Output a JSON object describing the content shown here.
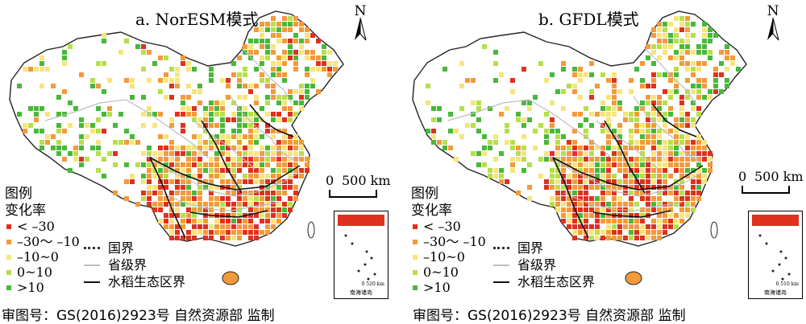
{
  "panels": [
    {
      "title": "a. NorESM模式",
      "north": "N",
      "scale": {
        "zero": "0",
        "label": "500 km"
      },
      "legend_title": "图例",
      "legend_sub": "变化率",
      "inset_scale": "0   520 km",
      "inset_label": "南海诸岛",
      "footer": "审图号：GS(2016)2923号  自然资源部 监制",
      "map_seed": 17
    },
    {
      "title": "b. GFDL模式",
      "north": "N",
      "scale": {
        "zero": "0",
        "label": "500 km"
      },
      "legend_title": "图例",
      "legend_sub": "变化率",
      "inset_scale": "0   510 km",
      "inset_label": "南海诸岛",
      "footer": "审图号：GS(2016)2923号  自然资源部 监制",
      "map_seed": 41
    }
  ],
  "legend_items": [
    {
      "label": "< –30",
      "color": "#e0301e"
    },
    {
      "label": "–30～ –10",
      "color": "#f39a3a"
    },
    {
      "label": "–10~0",
      "color": "#f6e57c"
    },
    {
      "label": "0~10",
      "color": "#b6df4a"
    },
    {
      "label": ">10",
      "color": "#48b83a"
    }
  ],
  "line_legend": [
    {
      "label": "国界",
      "style": "nation"
    },
    {
      "label": "省级界",
      "style": "prov"
    },
    {
      "label": "水稻生态区界",
      "style": "eco"
    }
  ],
  "colors": {
    "map_fill": "#ffffff",
    "outline": "#222222",
    "province": "#bdbdbd"
  }
}
